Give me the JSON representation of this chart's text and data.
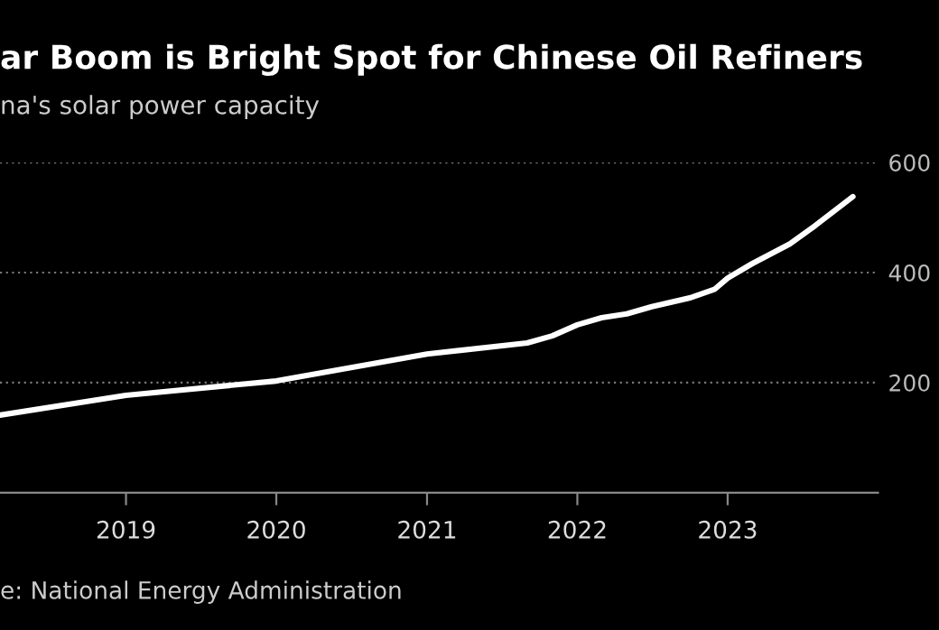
{
  "chart_data": {
    "type": "line",
    "title": "ar Boom is Bright Spot for Chinese Oil Refiners",
    "subtitle": "na's solar power capacity",
    "annotations": [
      "e: National Energy Administration"
    ],
    "x": [
      "2018-03",
      "2019-01",
      "2020-01",
      "2021-01",
      "2021-09",
      "2021-11",
      "2022-01",
      "2022-03",
      "2022-05",
      "2022-07",
      "2022-10",
      "2022-12",
      "2023-01",
      "2023-03",
      "2023-06",
      "2023-08",
      "2023-11"
    ],
    "series": [
      {
        "color": "#ffffff",
        "values": [
          141,
          177,
          203,
          252,
          272,
          285,
          305,
          318,
          325,
          338,
          354,
          370,
          390,
          416,
          452,
          485,
          538
        ]
      }
    ],
    "xlim": [
      "2018-03",
      "2024-01"
    ],
    "ylim": [
      0,
      600
    ],
    "xticks": [
      {
        "value": "2019",
        "label": "2019"
      },
      {
        "value": "2020",
        "label": "2020"
      },
      {
        "value": "2021",
        "label": "2021"
      },
      {
        "value": "2022",
        "label": "2022"
      },
      {
        "value": "2023",
        "label": "2023"
      }
    ],
    "yticks": [
      200,
      400,
      600
    ],
    "grid": "y",
    "line_style": "solid"
  }
}
